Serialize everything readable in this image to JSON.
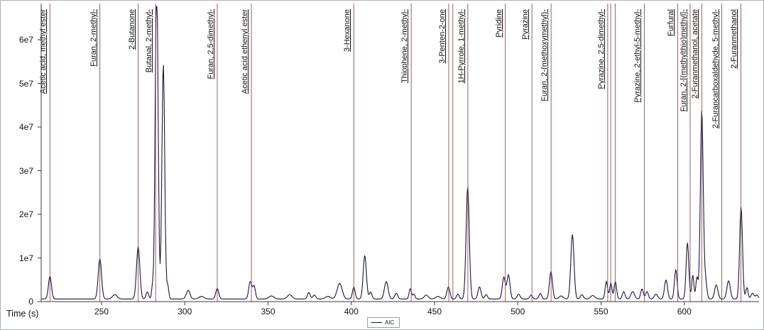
{
  "chart_data": {
    "type": "line",
    "title": "",
    "xlabel": "Time (s)",
    "ylabel": "",
    "legend": "AIC",
    "legend_position": "bottom-center",
    "grid": false,
    "xlim": [
      214,
      645
    ],
    "ylim": [
      0,
      67600000
    ],
    "x_ticks": [
      250,
      300,
      350,
      400,
      450,
      500,
      550,
      600
    ],
    "y_ticks": [
      {
        "v": 0,
        "label": "0"
      },
      {
        "v": 1,
        "label": "1e7"
      },
      {
        "v": 2,
        "label": "2e7"
      },
      {
        "v": 3,
        "label": "3e7"
      },
      {
        "v": 4,
        "label": "4e7"
      },
      {
        "v": 5,
        "label": "5e7"
      },
      {
        "v": 6,
        "label": "6e7"
      }
    ],
    "y_clip_e7": 6.76,
    "baseline_e7": 0.06,
    "colors": {
      "trace": "#16163e",
      "marker_line": "#8a4545",
      "axis": "#3a3a3a",
      "tick": "#3a3a3a"
    },
    "compounds": [
      {
        "name": "Acetic acid, methyl ester",
        "time": 219
      },
      {
        "name": "Furan, 2-methyl-",
        "time": 249
      },
      {
        "name": "2-Butanone",
        "time": 272
      },
      {
        "name": "Butanal, 2-methyl-",
        "time": 282.5
      },
      {
        "name": "Furan, 2,5-dimethyl-",
        "time": 319.5
      },
      {
        "name": "Acetic acid ethenyl ester",
        "time": 340
      },
      {
        "name": "3-Hexanone",
        "time": 401.5
      },
      {
        "name": "Thiophene, 2-methyl-",
        "time": 436
      },
      {
        "name": "3-Penten-2-one",
        "time": 458.5,
        "extra_lines": [
          461
        ]
      },
      {
        "name": "1H-Pyrrole, 1-methyl-",
        "time": 470
      },
      {
        "name": "Pyridine",
        "time": 492.5
      },
      {
        "name": "Pyrazine",
        "time": 508.5
      },
      {
        "name": "Furan, 2-(methoxymethyl)-",
        "time": 520
      },
      {
        "name": "Pyrazine, 2,5-dimethyl-",
        "time": 554,
        "extra_lines": [
          555.8,
          558.5
        ]
      },
      {
        "name": "Pyrazine, 2-ethyl-5-methyl-",
        "time": 576
      },
      {
        "name": "Furfural",
        "time": 596
      },
      {
        "name": "Furan, 2-[(methylthio)methyl]-",
        "time": 603.5
      },
      {
        "name": "2-Furanmethanol, acetate",
        "time": 610.5
      },
      {
        "name": "2-Furancarboxaldehyde, 5-methyl-",
        "time": 622.5
      },
      {
        "name": "2-Furanmethanol",
        "time": 634
      }
    ],
    "trace_peaks": [
      [
        219,
        0.52,
        0.9
      ],
      [
        249,
        0.92,
        1.0
      ],
      [
        258,
        0.1,
        1.4
      ],
      [
        272,
        1.2,
        1.0
      ],
      [
        277.5,
        0.16,
        0.8
      ],
      [
        280.6,
        0.28,
        0.55
      ],
      [
        283.1,
        7.6,
        0.85
      ],
      [
        287.1,
        5.4,
        0.85
      ],
      [
        289.8,
        0.3,
        0.6
      ],
      [
        302,
        0.2,
        1.1
      ],
      [
        310,
        0.06,
        1.5
      ],
      [
        319.5,
        0.24,
        0.9
      ],
      [
        339.3,
        0.4,
        0.9
      ],
      [
        341.6,
        0.3,
        0.8
      ],
      [
        352,
        0.07,
        1.5
      ],
      [
        363,
        0.1,
        1.4
      ],
      [
        374.5,
        0.15,
        0.8
      ],
      [
        377.8,
        0.09,
        0.9
      ],
      [
        386,
        0.06,
        1.5
      ],
      [
        393,
        0.36,
        1.5
      ],
      [
        401.5,
        0.27,
        0.8
      ],
      [
        408.1,
        1.0,
        0.95
      ],
      [
        411.6,
        0.16,
        0.8
      ],
      [
        421,
        0.4,
        1.1
      ],
      [
        427,
        0.13,
        0.9
      ],
      [
        435.4,
        0.24,
        0.7
      ],
      [
        437.6,
        0.11,
        0.7
      ],
      [
        445,
        0.09,
        1.2
      ],
      [
        452,
        0.06,
        1.4
      ],
      [
        458.3,
        0.28,
        0.9
      ],
      [
        464,
        0.11,
        0.8
      ],
      [
        469.9,
        2.58,
        0.95
      ],
      [
        477,
        0.28,
        0.9
      ],
      [
        481,
        0.1,
        0.8
      ],
      [
        491.6,
        0.5,
        0.9
      ],
      [
        494.4,
        0.55,
        0.9
      ],
      [
        500.5,
        0.11,
        0.9
      ],
      [
        508,
        0.09,
        0.8
      ],
      [
        513.5,
        0.13,
        0.8
      ],
      [
        519.9,
        0.63,
        0.9
      ],
      [
        526,
        0.07,
        1.2
      ],
      [
        532.8,
        1.48,
        0.95
      ],
      [
        538.5,
        0.1,
        0.9
      ],
      [
        545,
        0.08,
        1.3
      ],
      [
        553.2,
        0.4,
        0.75
      ],
      [
        555.9,
        0.36,
        0.7
      ],
      [
        558.6,
        0.4,
        0.75
      ],
      [
        563.6,
        0.17,
        0.8
      ],
      [
        569,
        0.17,
        1.1
      ],
      [
        574.6,
        0.23,
        0.8
      ],
      [
        577.6,
        0.17,
        0.8
      ],
      [
        583,
        0.11,
        1.0
      ],
      [
        589,
        0.44,
        0.9
      ],
      [
        594.9,
        0.68,
        0.8
      ],
      [
        601.9,
        1.3,
        0.8
      ],
      [
        605.1,
        0.55,
        0.65
      ],
      [
        607.6,
        0.5,
        0.65
      ],
      [
        610.5,
        4.33,
        0.85
      ],
      [
        612.7,
        0.45,
        0.8
      ],
      [
        619.2,
        0.32,
        1.0
      ],
      [
        626.6,
        0.42,
        1.0
      ],
      [
        634.1,
        2.12,
        0.85
      ],
      [
        637.6,
        0.26,
        0.7
      ],
      [
        641,
        0.13,
        0.9
      ],
      [
        643.6,
        0.09,
        0.8
      ]
    ]
  }
}
